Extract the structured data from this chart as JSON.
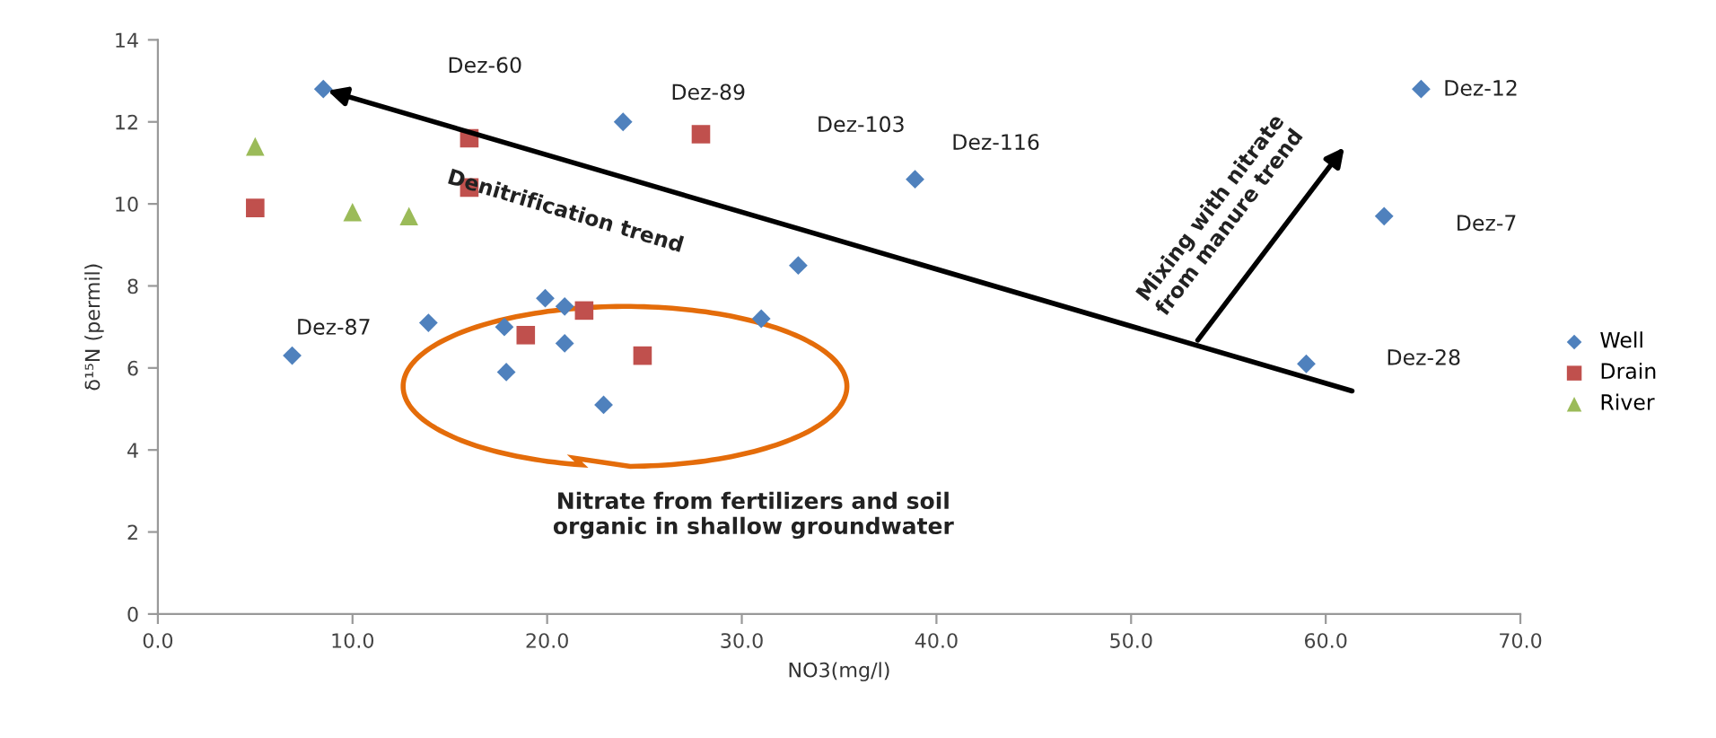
{
  "chart_data": {
    "type": "scatter",
    "xlabel": "NO3(mg/l)",
    "ylabel": "δ¹⁵N (permil)",
    "xlim": [
      0,
      70
    ],
    "xticks": [
      {
        "value": 0,
        "label": "0.0"
      },
      {
        "value": 10,
        "label": "10.0"
      },
      {
        "value": 20,
        "label": "20.0"
      },
      {
        "value": 30,
        "label": "30.0"
      },
      {
        "value": 40,
        "label": "40.0"
      },
      {
        "value": 50,
        "label": "50.0"
      },
      {
        "value": 60,
        "label": "60.0"
      },
      {
        "value": 70,
        "label": "70.0"
      }
    ],
    "ylim": [
      0,
      14
    ],
    "yticks": [
      0,
      2,
      4,
      6,
      8,
      10,
      12,
      14
    ],
    "grid": false,
    "legend": "right",
    "series": [
      {
        "name": "Well",
        "color": "#4f81bd",
        "marker": "diamond",
        "x": [
          8.5,
          23.9,
          38.9,
          64.9,
          63.0,
          59.0,
          6.9,
          13.9,
          17.8,
          17.9,
          19.9,
          20.9,
          20.9,
          22.9,
          31.0,
          32.9
        ],
        "values": [
          12.8,
          12.0,
          10.6,
          12.8,
          9.7,
          6.1,
          6.3,
          7.1,
          7.0,
          5.9,
          7.7,
          7.5,
          6.6,
          5.1,
          7.2,
          8.5
        ]
      },
      {
        "name": "Drain",
        "color": "#c0504d",
        "marker": "square",
        "x": [
          5.0,
          16.0,
          16.0,
          27.9,
          18.9,
          21.9,
          24.9
        ],
        "values": [
          9.9,
          11.6,
          10.4,
          11.7,
          6.8,
          7.4,
          6.3
        ]
      },
      {
        "name": "River",
        "color": "#9bbb59",
        "marker": "triangle",
        "x": [
          5.0,
          10.0,
          12.9
        ],
        "values": [
          11.4,
          9.8,
          9.7
        ]
      }
    ],
    "annotations": [
      "Dez-60",
      "Dez-89",
      "Dez-103",
      "Dez-116",
      "Dez-12",
      "Dez-7",
      "Dez-28",
      "Dez-87",
      "Denitrification trend",
      "Mixing with nitrate\nfrom manure trend",
      "Nitrate from fertilizers and soil\norganic in shallow groundwater"
    ]
  }
}
